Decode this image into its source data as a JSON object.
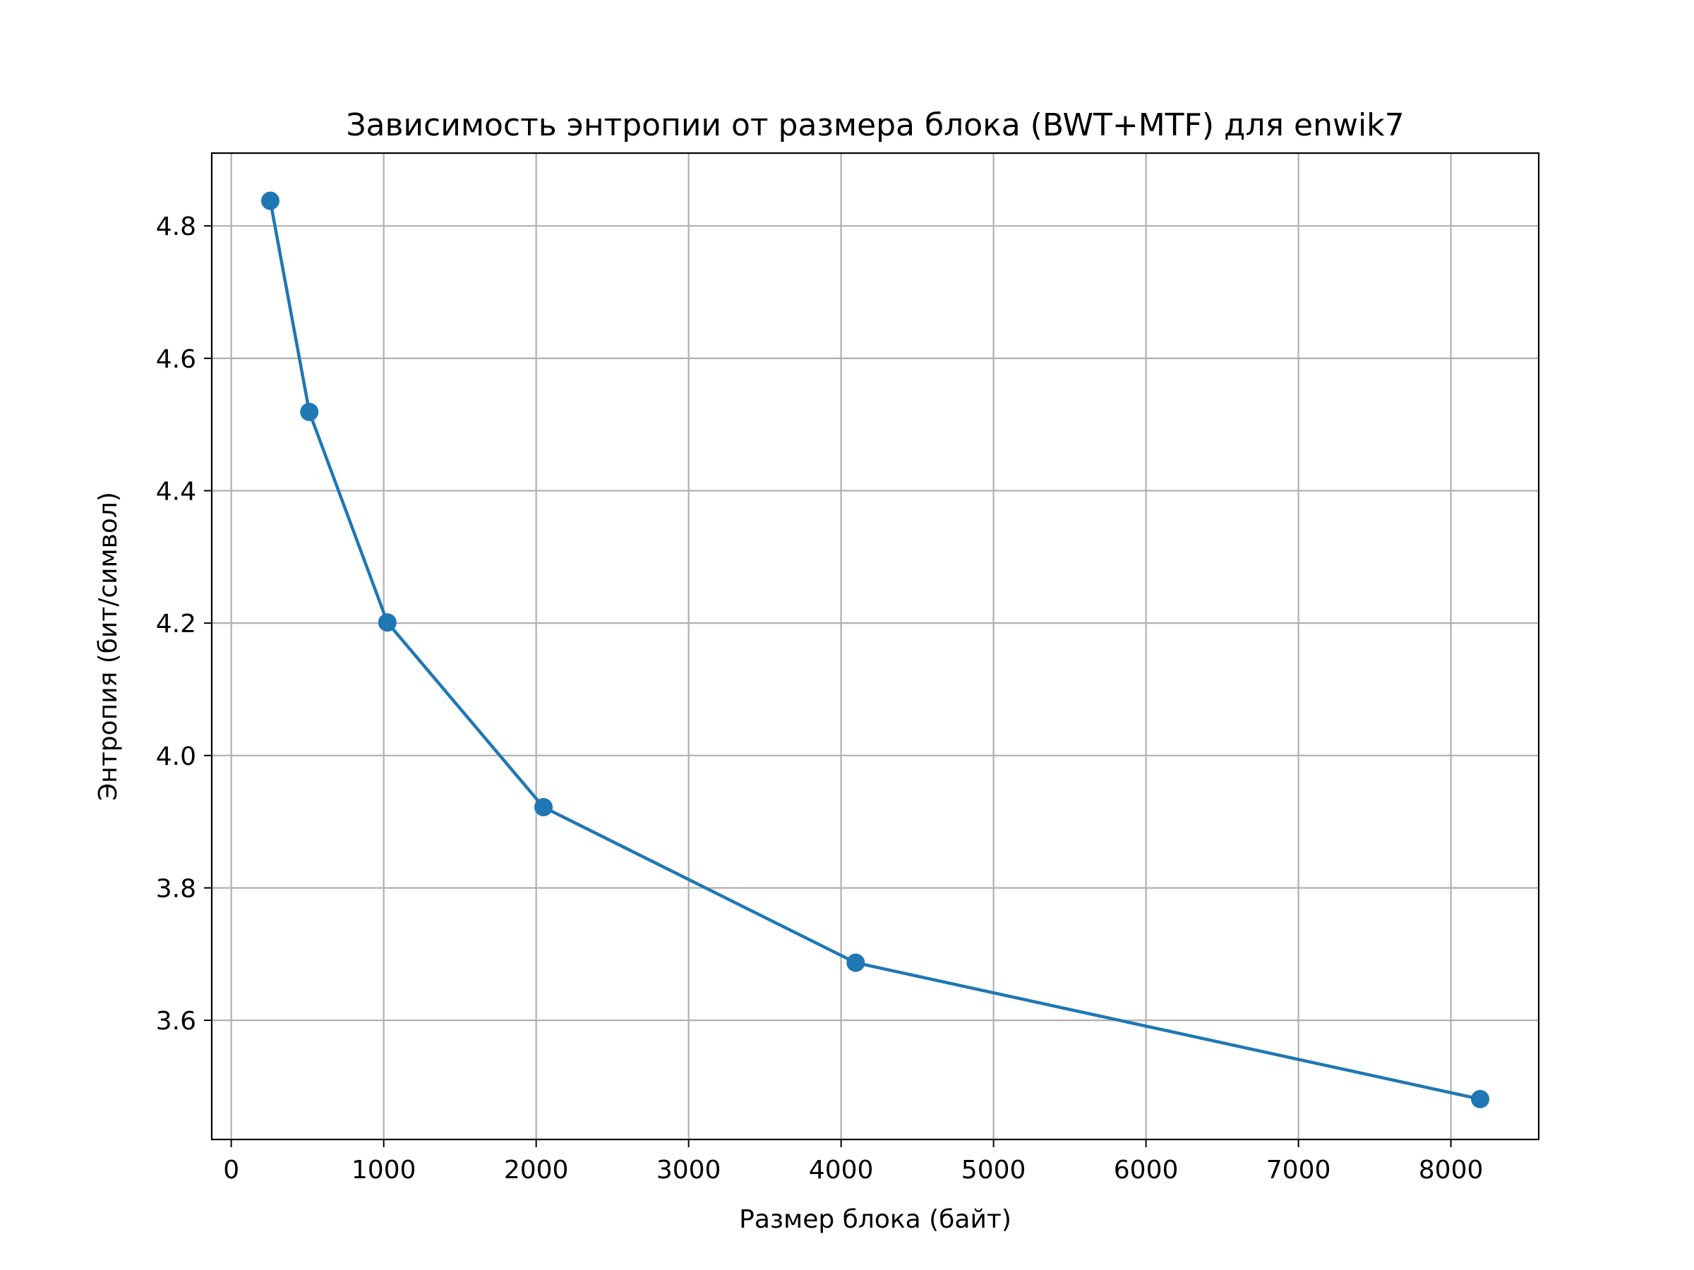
{
  "chart_data": {
    "type": "line",
    "title": "Зависимость энтропии от размера блока (BWT+MTF) для enwik7",
    "xlabel": "Размер блока (байт)",
    "ylabel": "Энтропия (бит/символ)",
    "xlim": [
      -128,
      8576
    ],
    "ylim": [
      3.42,
      4.91
    ],
    "x_ticks": [
      0,
      1000,
      2000,
      3000,
      4000,
      5000,
      6000,
      7000,
      8000
    ],
    "y_ticks": [
      3.6,
      3.8,
      4.0,
      4.2,
      4.4,
      4.6,
      4.8
    ],
    "x_tick_labels": [
      "0",
      "1000",
      "2000",
      "3000",
      "4000",
      "5000",
      "6000",
      "7000",
      "8000"
    ],
    "y_tick_labels": [
      "3.6",
      "3.8",
      "4.0",
      "4.2",
      "4.4",
      "4.6",
      "4.8"
    ],
    "grid": true,
    "series": [
      {
        "x": [
          256,
          512,
          1024,
          2048,
          4096,
          8192
        ],
        "y": [
          4.838,
          4.519,
          4.201,
          3.922,
          3.687,
          3.481
        ],
        "color": "#1f77b4",
        "marker": "circle"
      }
    ]
  }
}
